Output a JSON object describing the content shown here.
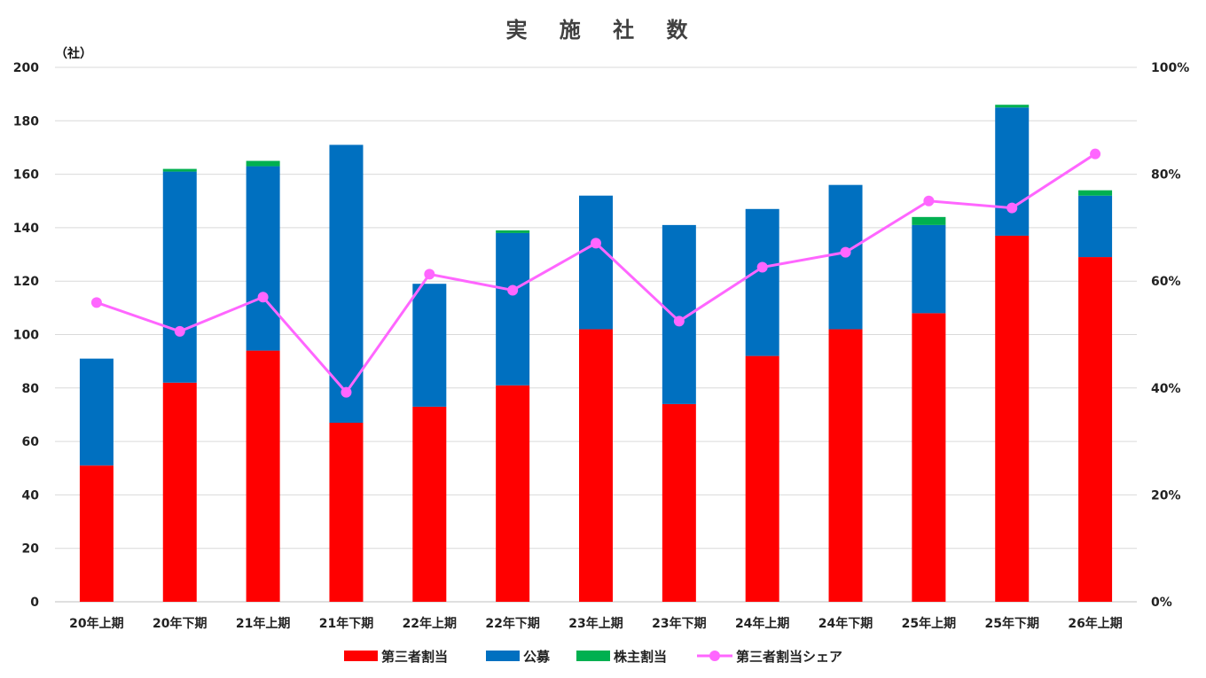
{
  "chart_data": {
    "type": "bar",
    "title": "実 施 社 数",
    "y_unit_label": "（社）",
    "categories": [
      "20年上期",
      "20年下期",
      "21年上期",
      "21年下期",
      "22年上期",
      "22年下期",
      "23年上期",
      "23年下期",
      "24年上期",
      "24年下期",
      "25年上期",
      "25年下期",
      "26年上期"
    ],
    "stacked": true,
    "series": [
      {
        "name": "第三者割当",
        "color": "#ff0000",
        "values": [
          51,
          82,
          94,
          67,
          73,
          81,
          102,
          74,
          92,
          102,
          108,
          137,
          129
        ]
      },
      {
        "name": "公募",
        "color": "#0070c0",
        "values": [
          40,
          79,
          69,
          104,
          46,
          57,
          50,
          67,
          55,
          54,
          33,
          48,
          23
        ]
      },
      {
        "name": "株主割当",
        "color": "#00b050",
        "values": [
          0,
          1,
          2,
          0,
          0,
          1,
          0,
          0,
          0,
          0,
          3,
          1,
          2
        ]
      }
    ],
    "line_series": {
      "name": "第三者割当シェア",
      "color": "#ff66ff",
      "axis": "right",
      "values": [
        56.0,
        50.6,
        57.0,
        39.2,
        61.3,
        58.3,
        67.1,
        52.5,
        62.6,
        65.4,
        75.0,
        73.7,
        83.8
      ]
    },
    "y_left": {
      "min": 0,
      "max": 200,
      "ticks": [
        "0",
        "20",
        "40",
        "60",
        "80",
        "100",
        "120",
        "140",
        "160",
        "180",
        "200"
      ]
    },
    "y_right": {
      "min": 0,
      "max": 100,
      "ticks": [
        "0%",
        "20%",
        "40%",
        "60%",
        "80%",
        "100%"
      ]
    },
    "grid": true,
    "legend_position": "bottom"
  }
}
